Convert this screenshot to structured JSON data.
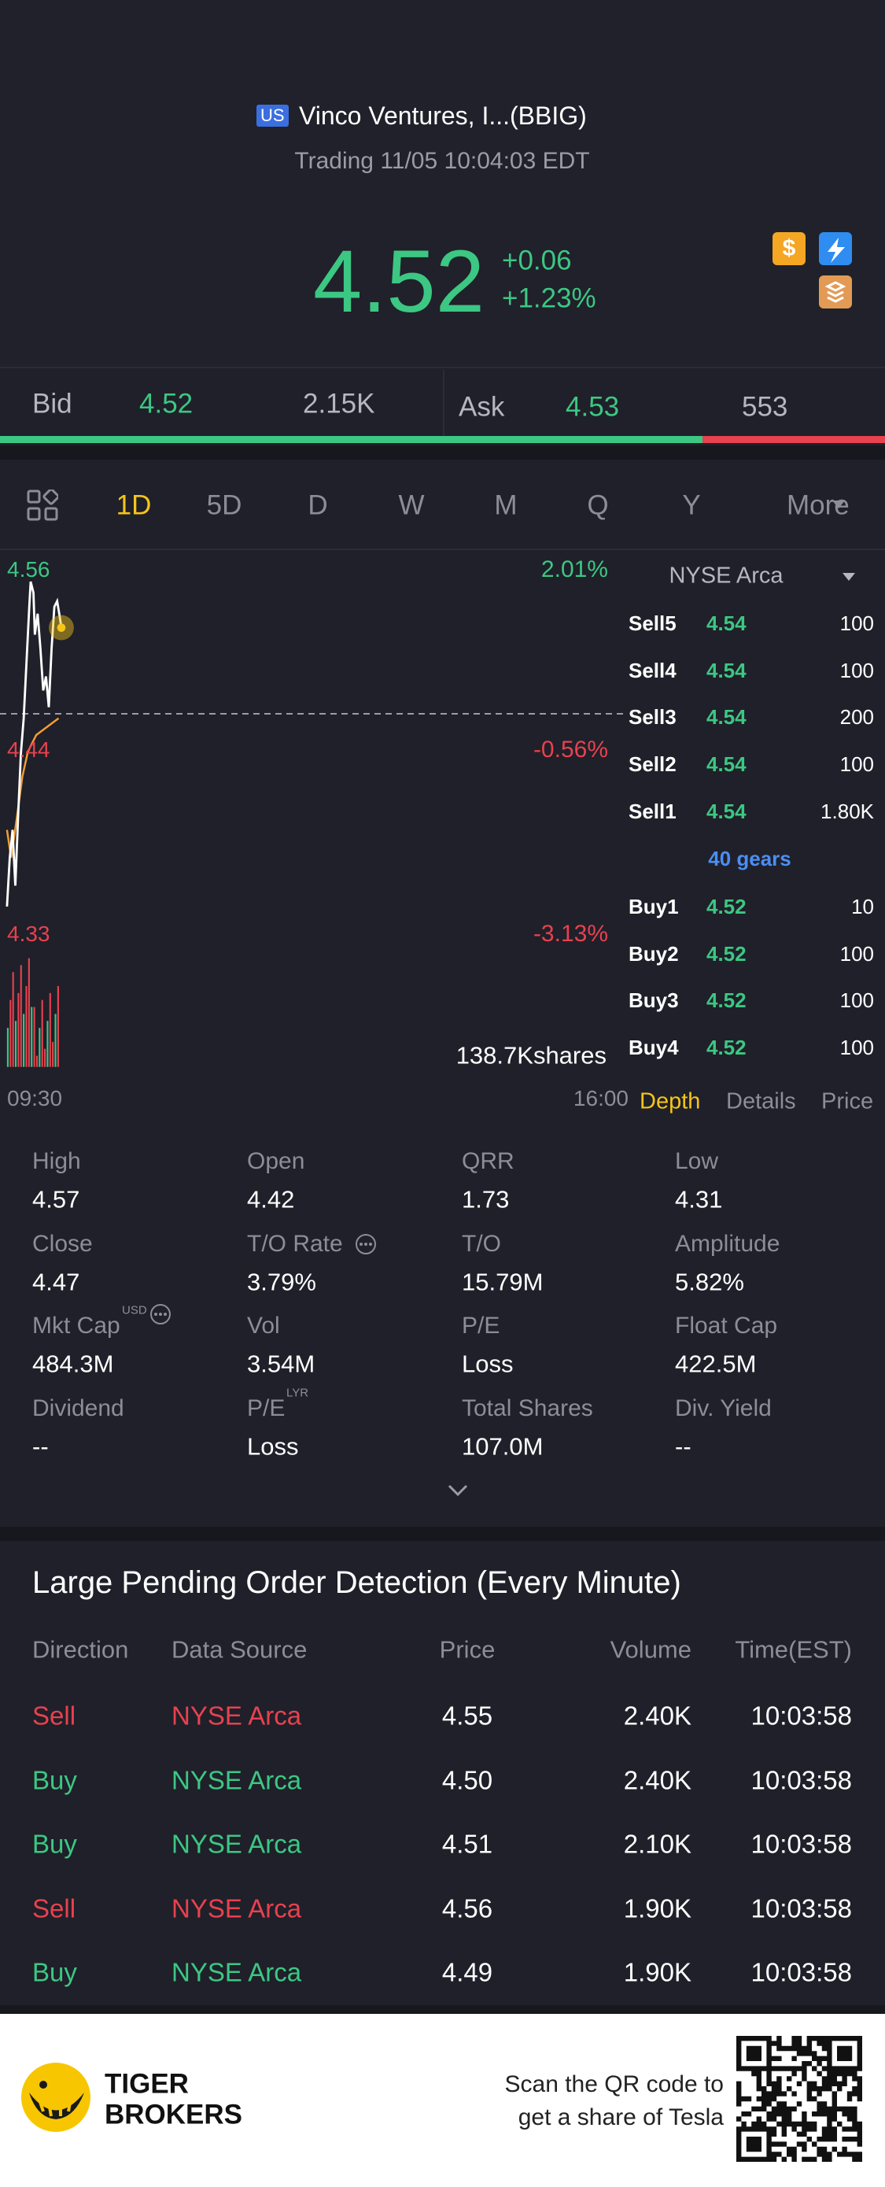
{
  "header": {
    "badge": "US",
    "name": "Vinco Ventures, I...(BBIG)",
    "status": "Trading 11/05 10:04:03 EDT"
  },
  "quote": {
    "price": "4.52",
    "change": "+0.06",
    "change_pct": "+1.23%"
  },
  "bid_ask": {
    "bid_label": "Bid",
    "bid": "4.52",
    "bid_size": "2.15K",
    "ask_label": "Ask",
    "ask": "4.53",
    "ask_size": "553"
  },
  "periods": {
    "items": [
      "1D",
      "5D",
      "D",
      "W",
      "M",
      "Q",
      "Y",
      "More"
    ],
    "active": 0
  },
  "chart": {
    "high": "4.56",
    "high_pct": "2.01%",
    "mid": "4.44",
    "mid_pct": "-0.56%",
    "low": "4.33",
    "low_pct": "-3.13%",
    "volume": "138.7Kshares",
    "start": "09:30",
    "end": "16:00"
  },
  "depth": {
    "exchange": "NYSE Arca",
    "sells": [
      {
        "label": "Sell5",
        "price": "4.54",
        "qty": "100"
      },
      {
        "label": "Sell4",
        "price": "4.54",
        "qty": "100"
      },
      {
        "label": "Sell3",
        "price": "4.54",
        "qty": "200"
      },
      {
        "label": "Sell2",
        "price": "4.54",
        "qty": "100"
      },
      {
        "label": "Sell1",
        "price": "4.54",
        "qty": "1.80K"
      }
    ],
    "gears": "40 gears",
    "buys": [
      {
        "label": "Buy1",
        "price": "4.52",
        "qty": "10"
      },
      {
        "label": "Buy2",
        "price": "4.52",
        "qty": "100"
      },
      {
        "label": "Buy3",
        "price": "4.52",
        "qty": "100"
      },
      {
        "label": "Buy4",
        "price": "4.52",
        "qty": "100"
      }
    ],
    "tabs": [
      "Depth",
      "Details",
      "Price"
    ],
    "active_tab": 0
  },
  "stats": [
    {
      "label": "High",
      "value": "4.57"
    },
    {
      "label": "Open",
      "value": "4.42"
    },
    {
      "label": "QRR",
      "value": "1.73"
    },
    {
      "label": "Low",
      "value": "4.31"
    },
    {
      "label": "Close",
      "value": "4.47"
    },
    {
      "label": "T/O Rate",
      "value": "3.79%",
      "info": true
    },
    {
      "label": "T/O",
      "value": "15.79M"
    },
    {
      "label": "Amplitude",
      "value": "5.82%"
    },
    {
      "label": "Mkt Cap",
      "sup": "USD",
      "value": "484.3M",
      "info": true
    },
    {
      "label": "Vol",
      "value": "3.54M"
    },
    {
      "label": "P/E",
      "value": "Loss"
    },
    {
      "label": "Float Cap",
      "value": "422.5M"
    },
    {
      "label": "Dividend",
      "value": "--"
    },
    {
      "label": "P/E",
      "sup": "LYR",
      "value": "Loss"
    },
    {
      "label": "Total Shares",
      "value": "107.0M"
    },
    {
      "label": "Div. Yield",
      "value": "--"
    }
  ],
  "orders": {
    "title": "Large Pending Order Detection (Every Minute)",
    "columns": [
      "Direction",
      "Data Source",
      "Price",
      "Volume",
      "Time(EST)"
    ],
    "rows": [
      {
        "cells": [
          "Sell",
          "NYSE Arca",
          "4.55",
          "2.40K",
          "10:03:58"
        ],
        "color": "#e8414f"
      },
      {
        "cells": [
          "Buy",
          "NYSE Arca",
          "4.50",
          "2.40K",
          "10:03:58"
        ],
        "color": "#3cc783"
      },
      {
        "cells": [
          "Buy",
          "NYSE Arca",
          "4.51",
          "2.10K",
          "10:03:58"
        ],
        "color": "#3cc783"
      },
      {
        "cells": [
          "Sell",
          "NYSE Arca",
          "4.56",
          "1.90K",
          "10:03:58"
        ],
        "color": "#e8414f"
      },
      {
        "cells": [
          "Buy",
          "NYSE Arca",
          "4.49",
          "1.90K",
          "10:03:58"
        ],
        "color": "#3cc783"
      }
    ]
  },
  "footer": {
    "brand_line1": "TIGER",
    "brand_line2": "BROKERS",
    "cta_line1": "Scan the QR code to",
    "cta_line2": "get a share of Tesla"
  }
}
